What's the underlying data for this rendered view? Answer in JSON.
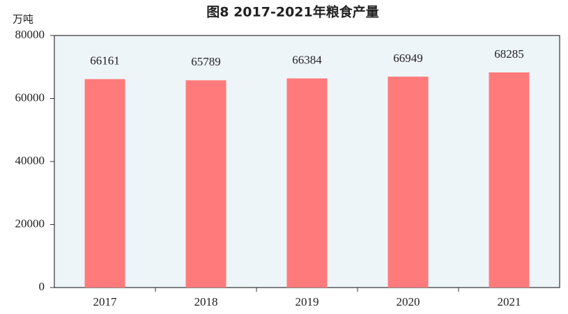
{
  "chart_data": {
    "type": "bar",
    "title": "图8  2017-2021年粮食产量",
    "y_axis_label": "万吨",
    "categories": [
      "2017",
      "2018",
      "2019",
      "2020",
      "2021"
    ],
    "values": [
      66161,
      65789,
      66384,
      66949,
      68285
    ],
    "color": "#ff7b7b",
    "background": "#eef5f9",
    "ylim": [
      0,
      80000
    ],
    "yticks": [
      0,
      20000,
      40000,
      60000,
      80000
    ],
    "grid": false
  }
}
